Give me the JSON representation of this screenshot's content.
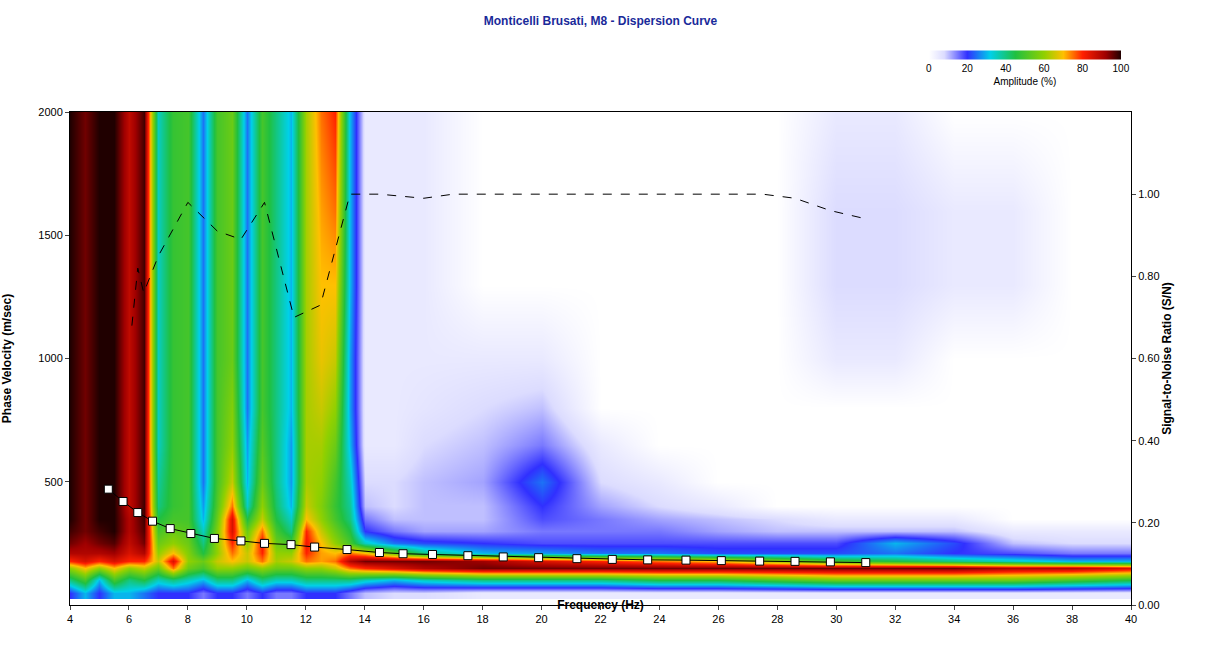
{
  "chart_data": {
    "type": "heatmap",
    "title": "Monticelli Brusati, M8 - Dispersion Curve",
    "x_label": "Frequency (Hz)",
    "y_label": "Phase Velocity (m/sec)",
    "y2_label": "Signal-to-Noise Ratio (S/N)",
    "xlim": [
      4,
      40
    ],
    "xticks": [
      4,
      6,
      8,
      10,
      12,
      14,
      16,
      18,
      20,
      22,
      24,
      26,
      28,
      30,
      32,
      34,
      36,
      38,
      40
    ],
    "ylim": [
      0,
      2000
    ],
    "yticks": [
      500,
      1000,
      1500,
      2000
    ],
    "y2lim": [
      0,
      1.2
    ],
    "y2ticks": [
      {
        "value": 0,
        "label": "0.00"
      },
      {
        "value": 0.2,
        "label": "0.20"
      },
      {
        "value": 0.4,
        "label": "0.40"
      },
      {
        "value": 0.6,
        "label": "0.60"
      },
      {
        "value": 0.8,
        "label": "0.80"
      },
      {
        "value": 1,
        "label": "1.00"
      }
    ],
    "grid": false,
    "x": [
      4,
      4.5,
      5,
      5.5,
      6,
      6.5,
      7,
      7.5,
      8,
      8.5,
      9,
      9.5,
      10,
      10.5,
      11,
      11.5,
      12,
      12.5,
      13,
      13.5,
      14,
      15,
      16,
      18,
      20,
      22,
      24,
      26,
      28,
      30,
      32,
      34,
      36,
      38,
      40
    ],
    "y": [
      50,
      100,
      150,
      180,
      210,
      250,
      300,
      350,
      400,
      500,
      650,
      800,
      1000,
      1300,
      1600,
      2000
    ],
    "amplitude": [
      [
        20,
        40,
        60,
        80,
        90,
        95,
        98,
        100,
        100,
        100,
        100,
        100,
        100,
        100,
        100,
        100
      ],
      [
        30,
        50,
        70,
        85,
        90,
        92,
        95,
        95,
        95,
        95,
        95,
        95,
        95,
        95,
        95,
        95
      ],
      [
        20,
        30,
        60,
        80,
        90,
        95,
        98,
        100,
        100,
        100,
        100,
        100,
        100,
        100,
        100,
        100
      ],
      [
        30,
        50,
        70,
        85,
        92,
        97,
        100,
        100,
        100,
        100,
        100,
        100,
        100,
        100,
        100,
        100
      ],
      [
        30,
        40,
        60,
        80,
        85,
        88,
        90,
        90,
        88,
        88,
        88,
        88,
        88,
        88,
        88,
        88
      ],
      [
        25,
        45,
        65,
        80,
        90,
        95,
        97,
        98,
        98,
        98,
        98,
        98,
        98,
        98,
        98,
        98
      ],
      [
        20,
        35,
        55,
        65,
        60,
        55,
        50,
        45,
        40,
        38,
        35,
        35,
        35,
        35,
        35,
        35
      ],
      [
        20,
        40,
        75,
        85,
        70,
        60,
        55,
        50,
        48,
        48,
        48,
        48,
        48,
        48,
        48,
        48
      ],
      [
        20,
        35,
        55,
        60,
        58,
        55,
        52,
        50,
        50,
        50,
        50,
        50,
        50,
        50,
        50,
        50
      ],
      [
        15,
        30,
        50,
        55,
        45,
        40,
        35,
        30,
        28,
        25,
        25,
        25,
        25,
        25,
        25,
        25
      ],
      [
        20,
        40,
        60,
        65,
        60,
        60,
        58,
        55,
        52,
        50,
        50,
        50,
        50,
        50,
        50,
        50
      ],
      [
        20,
        40,
        60,
        70,
        75,
        80,
        85,
        85,
        75,
        65,
        60,
        58,
        55,
        55,
        55,
        55
      ],
      [
        15,
        30,
        55,
        65,
        65,
        60,
        55,
        45,
        35,
        30,
        28,
        25,
        25,
        25,
        25,
        25
      ],
      [
        20,
        40,
        60,
        75,
        80,
        82,
        75,
        65,
        60,
        55,
        52,
        50,
        50,
        50,
        50,
        50
      ],
      [
        15,
        35,
        55,
        62,
        60,
        55,
        50,
        45,
        42,
        40,
        40,
        40,
        40,
        40,
        40,
        40
      ],
      [
        15,
        35,
        55,
        65,
        60,
        50,
        40,
        35,
        30,
        28,
        28,
        30,
        30,
        30,
        30,
        30
      ],
      [
        20,
        40,
        60,
        75,
        80,
        82,
        80,
        70,
        65,
        62,
        62,
        62,
        62,
        62,
        62,
        62
      ],
      [
        20,
        40,
        60,
        72,
        72,
        70,
        65,
        60,
        58,
        60,
        62,
        65,
        68,
        70,
        72,
        75
      ],
      [
        20,
        40,
        65,
        75,
        70,
        60,
        55,
        50,
        48,
        50,
        55,
        60,
        65,
        70,
        75,
        80
      ],
      [
        15,
        40,
        75,
        90,
        75,
        50,
        45,
        40,
        38,
        35,
        30,
        28,
        28,
        30,
        30,
        30
      ],
      [
        10,
        35,
        80,
        95,
        70,
        35,
        20,
        15,
        10,
        8,
        5,
        5,
        5,
        5,
        5,
        5
      ],
      [
        8,
        30,
        85,
        95,
        55,
        25,
        15,
        10,
        8,
        8,
        5,
        5,
        5,
        5,
        5,
        5
      ],
      [
        8,
        35,
        90,
        95,
        40,
        22,
        12,
        10,
        10,
        10,
        8,
        6,
        5,
        5,
        5,
        5
      ],
      [
        5,
        40,
        95,
        92,
        30,
        20,
        12,
        10,
        10,
        12,
        10,
        8,
        5,
        0,
        0,
        0
      ],
      [
        5,
        40,
        95,
        85,
        28,
        18,
        15,
        18,
        20,
        25,
        15,
        10,
        5,
        0,
        0,
        0
      ],
      [
        5,
        40,
        95,
        80,
        25,
        18,
        15,
        15,
        12,
        8,
        5,
        0,
        0,
        0,
        0,
        0
      ],
      [
        5,
        45,
        95,
        75,
        25,
        18,
        15,
        12,
        8,
        5,
        0,
        0,
        0,
        0,
        0,
        0
      ],
      [
        5,
        45,
        95,
        70,
        22,
        18,
        12,
        10,
        5,
        0,
        0,
        0,
        0,
        0,
        0,
        0
      ],
      [
        5,
        50,
        95,
        60,
        22,
        18,
        10,
        8,
        0,
        0,
        0,
        0,
        0,
        0,
        0,
        0
      ],
      [
        5,
        55,
        95,
        50,
        22,
        18,
        10,
        5,
        0,
        0,
        0,
        0,
        5,
        8,
        8,
        5
      ],
      [
        5,
        55,
        95,
        45,
        25,
        30,
        10,
        5,
        0,
        0,
        0,
        0,
        5,
        8,
        8,
        5
      ],
      [
        5,
        55,
        95,
        40,
        20,
        22,
        10,
        5,
        0,
        0,
        0,
        0,
        0,
        5,
        5,
        0
      ],
      [
        5,
        55,
        90,
        35,
        18,
        10,
        5,
        0,
        0,
        0,
        0,
        0,
        0,
        5,
        5,
        0
      ],
      [
        5,
        50,
        90,
        30,
        15,
        8,
        5,
        0,
        0,
        0,
        0,
        0,
        0,
        0,
        0,
        0
      ],
      [
        5,
        45,
        85,
        30,
        15,
        8,
        5,
        0,
        0,
        0,
        0,
        0,
        0,
        0,
        0,
        0
      ]
    ],
    "colorbar": {
      "title": "Amplitude (%)",
      "range": [
        0,
        100
      ],
      "ticks": [
        0,
        20,
        40,
        60,
        80,
        100
      ]
    },
    "series": [
      {
        "type": "line",
        "marker": "square",
        "color": "#ffffff",
        "x": [
          5.3,
          5.8,
          6.3,
          6.8,
          7.4,
          8.1,
          8.9,
          9.8,
          10.6,
          11.5,
          12.3,
          13.4,
          14.5,
          15.3,
          16.3,
          17.5,
          18.7,
          19.9,
          21.2,
          22.4,
          23.6,
          24.9,
          26.1,
          27.4,
          28.6,
          29.8,
          31.0
        ],
        "values": [
          470,
          420,
          375,
          340,
          310,
          290,
          270,
          260,
          250,
          245,
          235,
          225,
          213,
          208,
          205,
          200,
          195,
          192,
          188,
          185,
          183,
          182,
          180,
          178,
          177,
          175,
          172
        ]
      },
      {
        "type": "line",
        "axis": "y2",
        "line_style": "dashed",
        "color": "#000000",
        "x": [
          6.1,
          6.3,
          6.5,
          7.0,
          8.0,
          9.0,
          9.8,
          10.6,
          11.6,
          12.5,
          13.5,
          14.5,
          16.0,
          17.0,
          20.0,
          24.0,
          27.5,
          28.6,
          29.8,
          31.0
        ],
        "values": [
          0.68,
          0.82,
          0.76,
          0.85,
          0.98,
          0.91,
          0.89,
          0.98,
          0.7,
          0.73,
          1.0,
          1.0,
          0.99,
          1.0,
          1.0,
          1.0,
          1.0,
          0.99,
          0.96,
          0.94
        ]
      }
    ]
  }
}
